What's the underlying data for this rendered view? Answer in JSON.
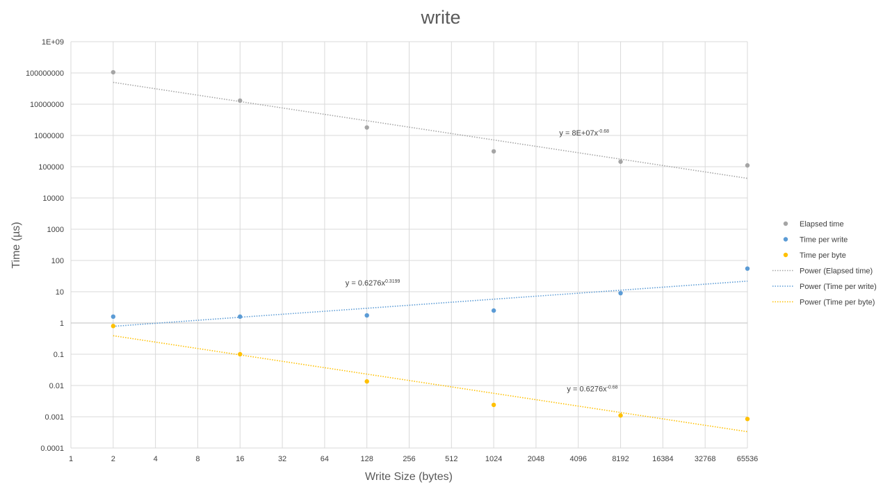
{
  "chart_data": {
    "type": "scatter",
    "title": "write",
    "xlabel": "Write Size (bytes)",
    "ylabel": "Time (µs)",
    "x_scale": "log2",
    "y_scale": "log10",
    "xlim": [
      1,
      65536
    ],
    "ylim": [
      0.0001,
      1000000000
    ],
    "grid": true,
    "legend_position": "right",
    "x_ticks": [
      "1",
      "2",
      "4",
      "8",
      "16",
      "32",
      "64",
      "128",
      "256",
      "512",
      "1024",
      "2048",
      "4096",
      "8192",
      "16384",
      "32768",
      "65536"
    ],
    "y_ticks": [
      "0.0001",
      "0.001",
      "0.01",
      "0.1",
      "1",
      "10",
      "100",
      "1000",
      "10000",
      "100000",
      "1000000",
      "10000000",
      "100000000",
      "1E+09"
    ],
    "series": [
      {
        "name": "Elapsed time",
        "color": "#a5a5a5",
        "x": [
          2,
          16,
          128,
          1024,
          8192,
          65536
        ],
        "y": [
          105000000,
          13000000,
          1800000,
          310000,
          145000,
          110000
        ]
      },
      {
        "name": "Time per write",
        "color": "#5b9bd5",
        "x": [
          2,
          16,
          128,
          1024,
          8192,
          65536
        ],
        "y": [
          1.6,
          1.6,
          1.75,
          2.5,
          9,
          55
        ]
      },
      {
        "name": "Time per byte",
        "color": "#ffc000",
        "x": [
          2,
          16,
          128,
          1024,
          8192,
          65536
        ],
        "y": [
          0.8,
          0.1,
          0.0135,
          0.0024,
          0.0011,
          0.00085
        ]
      }
    ],
    "trendlines": [
      {
        "name": "Power (Elapsed time)",
        "color": "#a5a5a5",
        "type": "power",
        "coef": 80000000,
        "exp": -0.68,
        "equation_base": "y = 8E+07x",
        "equation_exp": "-0.68",
        "label_x": 3000,
        "label_y": 1000000
      },
      {
        "name": "Power (Time per write)",
        "color": "#5b9bd5",
        "type": "power",
        "coef": 0.6276,
        "exp": 0.3199,
        "equation_base": "y = 0.6276x",
        "equation_exp": "0.3199",
        "label_x": 90,
        "label_y": 16
      },
      {
        "name": "Power (Time per byte)",
        "color": "#ffc000",
        "type": "power",
        "coef": 0.6276,
        "exp": -0.68,
        "equation_base": "y = 0.6276x",
        "equation_exp": "-0.68",
        "label_x": 3400,
        "label_y": 0.0065
      }
    ]
  }
}
